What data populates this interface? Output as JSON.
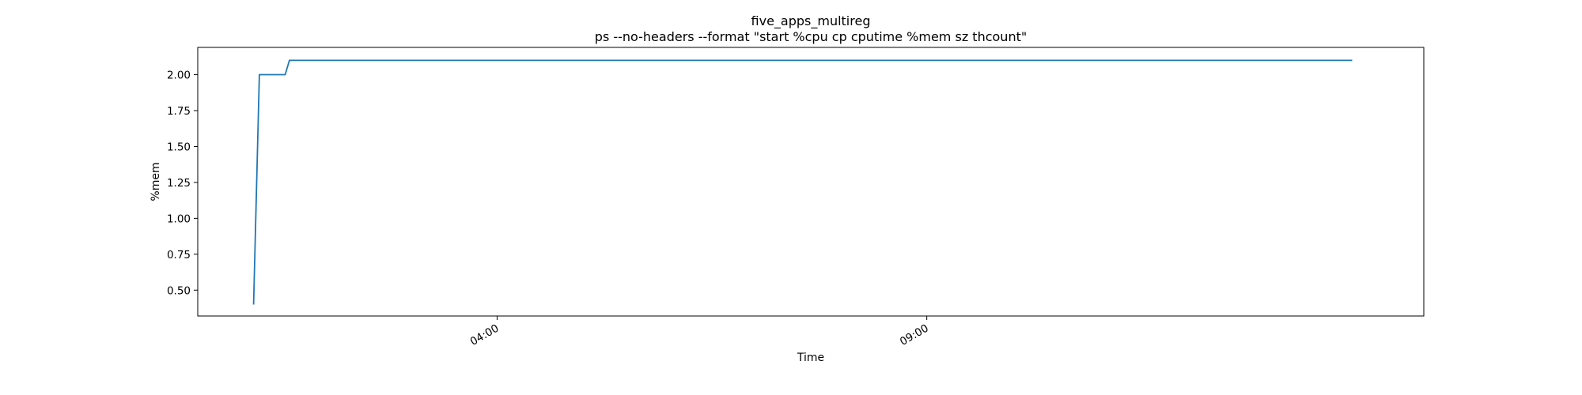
{
  "chart_data": {
    "type": "line",
    "title": "five_apps_multireg",
    "subtitle": "ps --no-headers --format \"start %cpu cp cputime %mem sz thcount\"",
    "xlabel": "Time",
    "ylabel": "%mem",
    "x_tick_labels": [
      "04:00",
      "09:00"
    ],
    "y_ticks": [
      0.5,
      0.75,
      1.0,
      1.25,
      1.5,
      1.75,
      2.0
    ],
    "y_tick_labels": [
      "0.50",
      "0.75",
      "1.00",
      "1.25",
      "1.50",
      "1.75",
      "2.00"
    ],
    "xlim": [
      "2023-01-01T00:31",
      "2023-01-01T14:47"
    ],
    "ylim": [
      0.32,
      2.19
    ],
    "grid": false,
    "line_color": "#1f77b4",
    "series": [
      {
        "x": [
          "2023-01-01T01:10",
          "2023-01-01T01:14",
          "2023-01-01T01:32",
          "2023-01-01T01:35",
          "2023-01-01T13:57"
        ],
        "values": [
          0.4,
          2.0,
          2.0,
          2.1,
          2.1
        ]
      }
    ]
  }
}
